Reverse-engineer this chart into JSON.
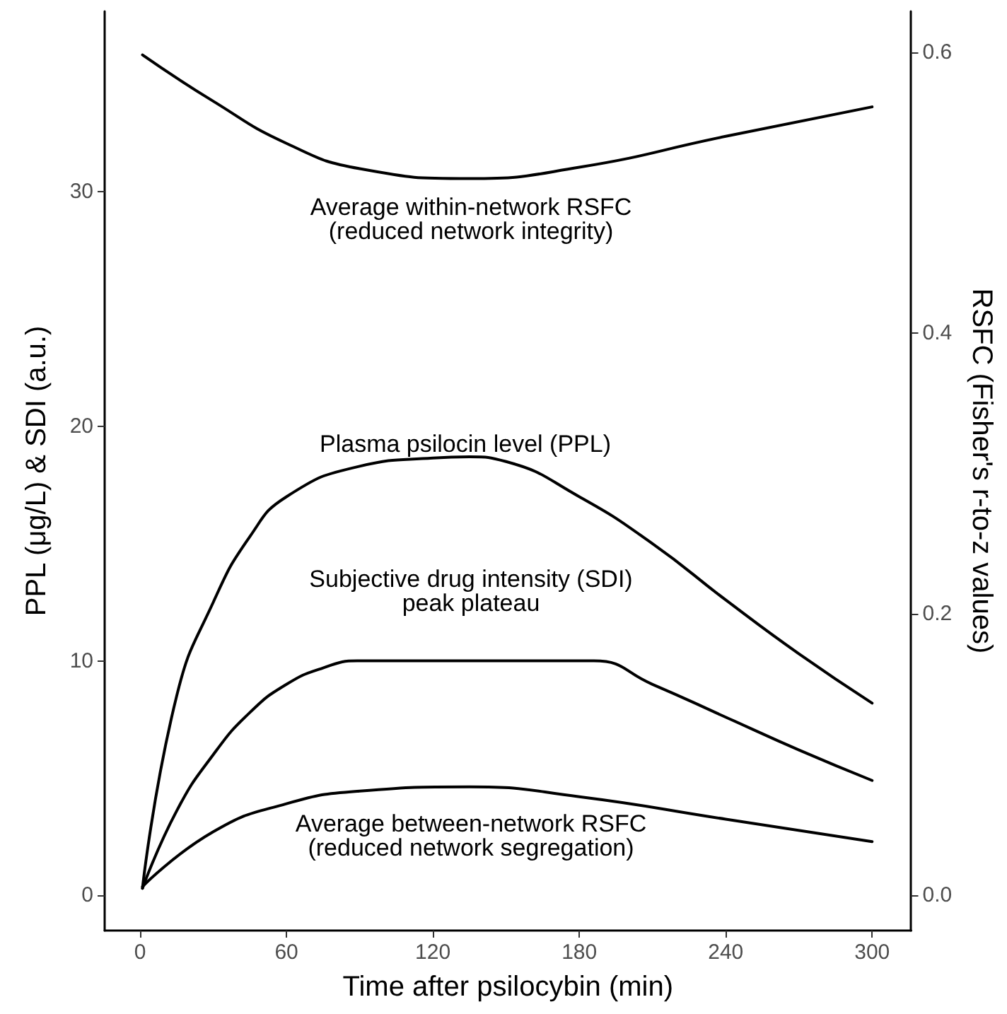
{
  "chart_data": {
    "type": "line",
    "xlabel": "Time after psilocybin (min)",
    "ylabel": "PPL (μg/L) & SDI (a.u.)",
    "y2label": "RSFC (Fisher's r-to-z values)",
    "xlim": [
      -14.5,
      316
    ],
    "xticks": [
      0,
      60,
      120,
      180,
      240,
      300
    ],
    "ylim": [
      -1.5,
      37.7
    ],
    "yticks": [
      0,
      10,
      20,
      30
    ],
    "y2lim": [
      -0.0253,
      0.629
    ],
    "y2ticks": [
      {
        "value": 0,
        "label": "0.0"
      },
      {
        "value": 0.2,
        "label": "0.2"
      },
      {
        "value": 0.4,
        "label": "0.4"
      },
      {
        "value": 0.6,
        "label": "0.6"
      }
    ],
    "grid": false,
    "marker": "none",
    "line_style": "solid",
    "series": [
      {
        "color": "#000000",
        "x": [
          1,
          15,
          30,
          45,
          60,
          90,
          120,
          135,
          150,
          180,
          210,
          240,
          270,
          300
        ],
        "values": [
          0.3,
          8.5,
          12.5,
          15.3,
          17.0,
          18.3,
          18.65,
          18.7,
          18.5,
          17.0,
          15.0,
          12.6,
          10.3,
          8.2
        ]
      },
      {
        "color": "#000000",
        "x": [
          1,
          15,
          30,
          45,
          60,
          75,
          89,
          186,
          210,
          240,
          270,
          300
        ],
        "values": [
          0.3,
          3.6,
          6.0,
          7.8,
          9.0,
          9.7,
          10,
          10,
          9.0,
          7.6,
          6.2,
          4.9
        ]
      },
      {
        "color": "#000000",
        "axis": "y2",
        "x": [
          1,
          30,
          60,
          90,
          135,
          180,
          240,
          300
        ],
        "values": [
          0.006,
          0.045,
          0.065,
          0.074,
          0.077,
          0.07,
          0.054,
          0.038
        ]
      },
      {
        "color": "#000000",
        "axis": "y2",
        "x": [
          1,
          30,
          60,
          90,
          135,
          180,
          240,
          300
        ],
        "values": [
          0.598,
          0.565,
          0.535,
          0.517,
          0.51,
          0.518,
          0.54,
          0.561
        ]
      }
    ],
    "annotations": [
      "Average within-network RSFC\n(reduced network integrity)",
      "Plasma psilocin level (PPL)",
      "Subjective drug intensity (SDI)\npeak plateau",
      "Average between-network RSFC\n(reduced network segregation)"
    ]
  }
}
